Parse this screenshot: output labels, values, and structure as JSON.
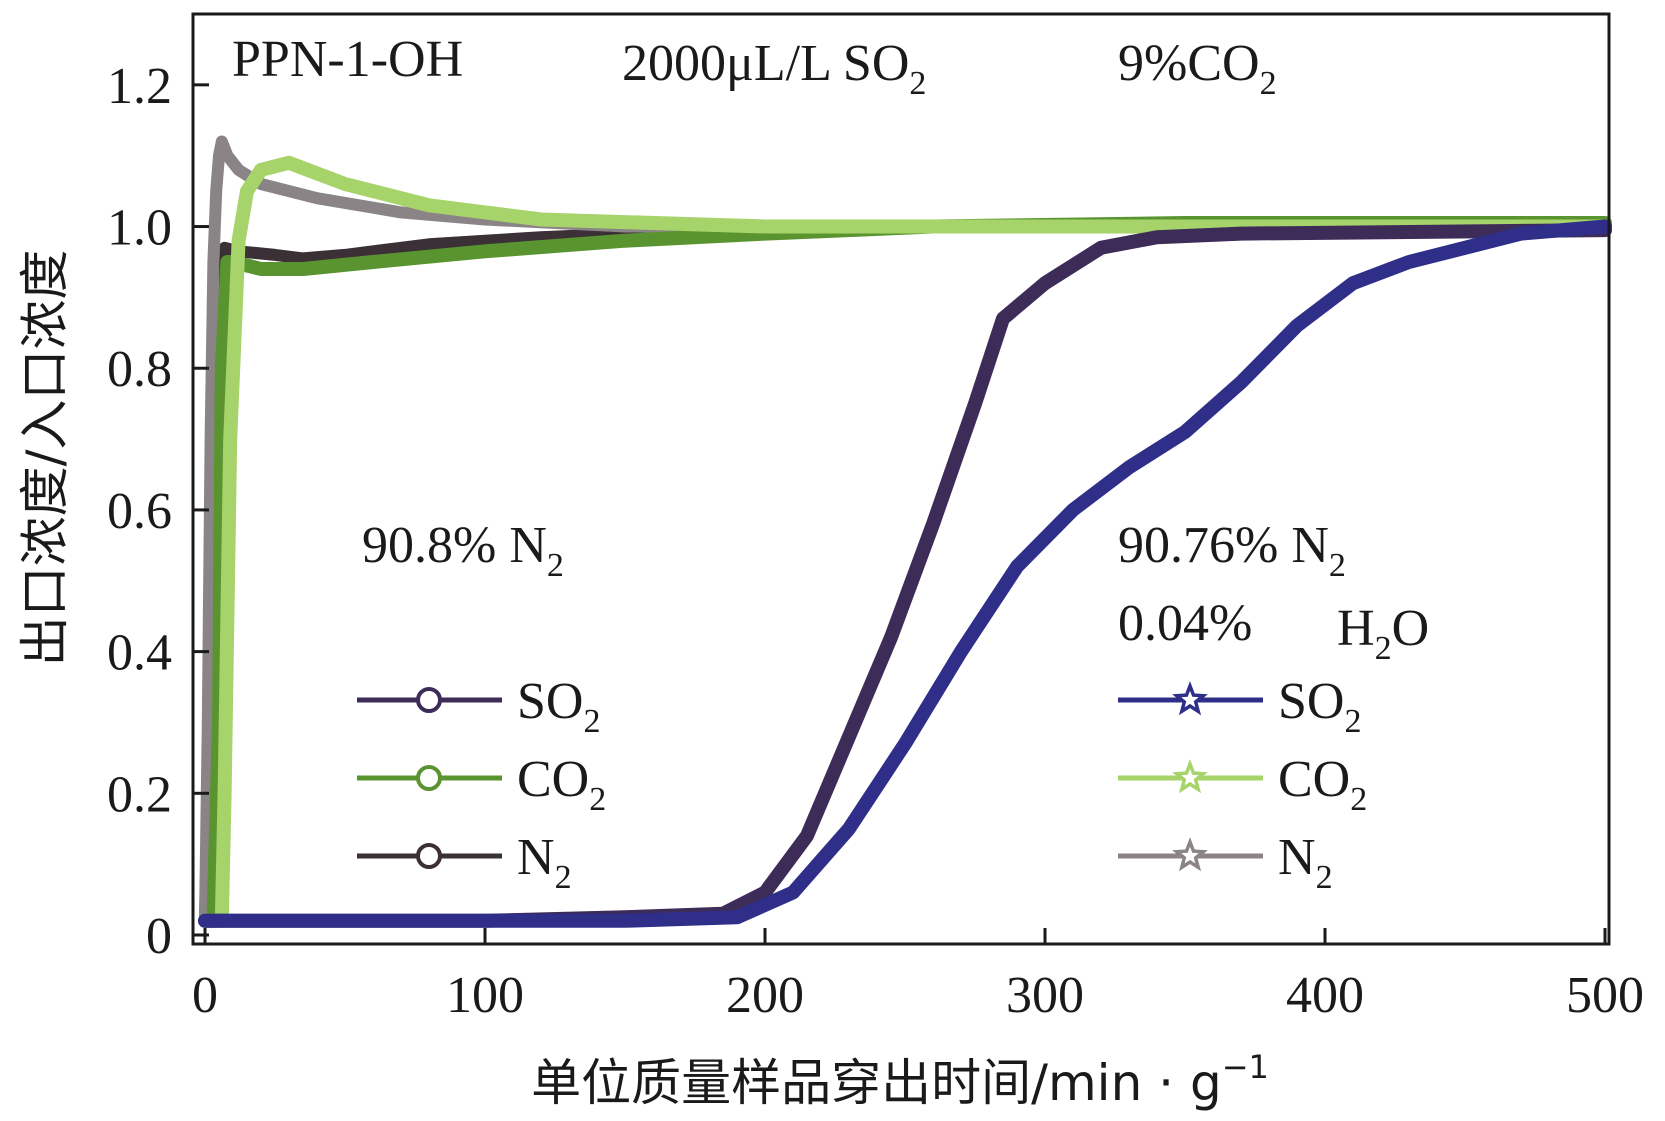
{
  "chart_data": {
    "type": "line",
    "xlabel": "单位质量样品穿出时间/min · g",
    "xlabel_sup": "−1",
    "ylabel": "出口浓度/入口浓度",
    "xlim": [
      0,
      500
    ],
    "ylim": [
      0,
      1.3
    ],
    "x_ticks": [
      "0",
      "100",
      "200",
      "300",
      "400",
      "500"
    ],
    "x_tick_values": [
      0,
      100,
      200,
      300,
      400,
      500
    ],
    "y_ticks": [
      "0",
      "0.2",
      "0.4",
      "0.6",
      "0.8",
      "1.0",
      "1.2"
    ],
    "y_tick_values": [
      0,
      0.2,
      0.4,
      0.6,
      0.8,
      1.0,
      1.2
    ],
    "grid": false,
    "annotations": {
      "sample": "PPN-1-OH",
      "so2_conc": "2000μL/L SO",
      "so2_sub": "2",
      "co2_conc": "9%CO",
      "co2_sub": "2",
      "dry_n2": "90.8% N",
      "dry_n2_sub": "2",
      "wet_n2": "90.76% N",
      "wet_n2_sub": "2",
      "wet_h2o_pct": "0.04%",
      "wet_h2o_a": "H",
      "wet_h2o_sub": "2",
      "wet_h2o_b": "O"
    },
    "legend": {
      "dry": [
        {
          "label": "SO",
          "sub": "2",
          "color": "#3d2b58",
          "marker": "circle"
        },
        {
          "label": "CO",
          "sub": "2",
          "color": "#5a9430",
          "marker": "circle"
        },
        {
          "label": "N",
          "sub": "2",
          "color": "#3a3035",
          "marker": "circle"
        }
      ],
      "wet": [
        {
          "label": "SO",
          "sub": "2",
          "color": "#2f2f8a",
          "marker": "star"
        },
        {
          "label": "CO",
          "sub": "2",
          "color": "#a6d36a",
          "marker": "star"
        },
        {
          "label": "N",
          "sub": "2",
          "color": "#8a8486",
          "marker": "star"
        }
      ]
    },
    "series": [
      {
        "key": "dry_n2",
        "color": "#3a3035",
        "width": 12,
        "x": [
          0,
          1,
          2,
          3,
          4,
          5,
          7,
          12,
          25,
          35,
          50,
          80,
          120,
          180,
          250,
          350,
          500
        ],
        "y": [
          0.02,
          0.2,
          0.45,
          0.7,
          0.85,
          0.95,
          0.97,
          0.965,
          0.96,
          0.955,
          0.96,
          0.975,
          0.985,
          0.995,
          1.0,
          1.0,
          1.0
        ]
      },
      {
        "key": "wet_n2",
        "color": "#8a8486",
        "width": 12,
        "x": [
          0,
          1,
          2,
          3,
          4,
          5,
          6,
          8,
          12,
          20,
          40,
          70,
          100,
          150,
          250,
          500
        ],
        "y": [
          0.02,
          0.3,
          0.7,
          0.95,
          1.05,
          1.1,
          1.12,
          1.1,
          1.08,
          1.06,
          1.04,
          1.02,
          1.01,
          1.0,
          1.0,
          1.0
        ]
      },
      {
        "key": "dry_co2",
        "color": "#5a9430",
        "width": 14,
        "x": [
          0,
          3,
          5,
          6,
          8,
          10,
          20,
          35,
          60,
          100,
          150,
          200,
          260,
          350,
          500
        ],
        "y": [
          0.02,
          0.02,
          0.3,
          0.8,
          0.95,
          0.95,
          0.94,
          0.94,
          0.95,
          0.965,
          0.98,
          0.99,
          1.0,
          1.005,
          1.005
        ]
      },
      {
        "key": "wet_co2",
        "color": "#a6d36a",
        "width": 14,
        "x": [
          0,
          6,
          7,
          9,
          12,
          15,
          20,
          30,
          50,
          80,
          120,
          200,
          300,
          500
        ],
        "y": [
          0.02,
          0.02,
          0.2,
          0.7,
          0.98,
          1.05,
          1.08,
          1.09,
          1.06,
          1.03,
          1.01,
          1.0,
          1.0,
          1.0
        ]
      },
      {
        "key": "dry_so2",
        "color": "#3d2b58",
        "width": 14,
        "x": [
          0,
          50,
          100,
          150,
          185,
          200,
          215,
          230,
          245,
          260,
          275,
          285,
          300,
          320,
          340,
          370,
          500
        ],
        "y": [
          0.02,
          0.02,
          0.02,
          0.025,
          0.03,
          0.06,
          0.14,
          0.28,
          0.42,
          0.58,
          0.75,
          0.87,
          0.92,
          0.97,
          0.985,
          0.99,
          0.995
        ]
      },
      {
        "key": "wet_so2",
        "color": "#2f2f8a",
        "width": 14,
        "x": [
          0,
          50,
          100,
          150,
          190,
          210,
          230,
          250,
          270,
          290,
          310,
          330,
          350,
          370,
          390,
          410,
          430,
          450,
          470,
          500
        ],
        "y": [
          0.02,
          0.02,
          0.02,
          0.02,
          0.025,
          0.06,
          0.15,
          0.27,
          0.4,
          0.52,
          0.6,
          0.66,
          0.71,
          0.78,
          0.86,
          0.92,
          0.95,
          0.97,
          0.99,
          1.0
        ]
      }
    ]
  }
}
